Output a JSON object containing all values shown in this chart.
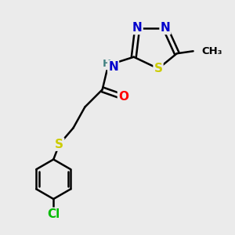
{
  "bg_color": "#ebebeb",
  "bond_color": "#000000",
  "bond_width": 1.8,
  "atom_colors": {
    "N": "#0000cc",
    "O": "#ff0000",
    "S": "#cccc00",
    "Cl": "#00bb00",
    "C": "#000000",
    "H": "#408080"
  },
  "font_size": 11
}
